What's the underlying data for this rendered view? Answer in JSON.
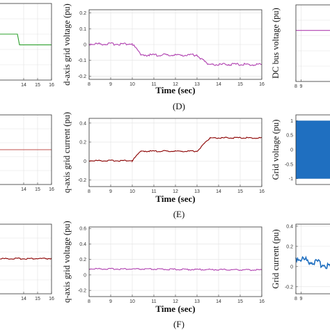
{
  "captions": [
    "(D)",
    "(E)",
    "(F)"
  ],
  "chart_data": [
    {
      "id": "d-left",
      "type": "line",
      "series": [
        {
          "color": "#2ca02c",
          "x": [
            12,
            13.3,
            13.55,
            13.7,
            14,
            15,
            16
          ],
          "y": [
            0.05,
            0.05,
            0.05,
            -0.02,
            -0.02,
            -0.02,
            -0.02
          ]
        }
      ],
      "xlim": [
        12,
        16
      ],
      "ylim": [
        -0.25,
        0.25
      ],
      "xticks": [
        "14",
        "15",
        "16"
      ],
      "yticks": [],
      "xlabel": "",
      "ylabel": "",
      "grid": true
    },
    {
      "id": "d-mid",
      "type": "line",
      "series": [
        {
          "color": "#b040b0",
          "x": [
            8,
            10,
            10.4,
            13,
            13.5,
            16
          ],
          "y": [
            0,
            0,
            -0.07,
            -0.07,
            -0.13,
            -0.13
          ]
        }
      ],
      "xlim": [
        8,
        16
      ],
      "ylim": [
        -0.22,
        0.22
      ],
      "xticks": [
        "8",
        "9",
        "10",
        "11",
        "12",
        "13",
        "14",
        "15",
        "16"
      ],
      "yticks": [
        "0.2",
        "0.1",
        "0",
        "-0.1",
        "-0.2"
      ],
      "xlabel": "Time (sec)",
      "ylabel": "d-axis grid voltage (pu)",
      "grid": true
    },
    {
      "id": "d-right",
      "type": "line",
      "series": [
        {
          "color": "#b040b0",
          "x": [
            8,
            16
          ],
          "y": [
            1,
            1
          ]
        }
      ],
      "xlim": [
        8,
        16
      ],
      "ylim": [
        0,
        1.5
      ],
      "xticks": [
        "8",
        "9"
      ],
      "yticks": [],
      "xlabel": "",
      "ylabel": "DC bus voltage (pu)",
      "grid": true
    },
    {
      "id": "e-left",
      "type": "line",
      "series": [
        {
          "color": "#c0504d",
          "x": [
            12,
            16
          ],
          "y": [
            0,
            0
          ]
        }
      ],
      "xlim": [
        12,
        16
      ],
      "ylim": [
        -1,
        1
      ],
      "xticks": [
        "14",
        "15",
        "16"
      ],
      "yticks": [],
      "xlabel": "",
      "ylabel": "",
      "grid": true
    },
    {
      "id": "e-mid",
      "type": "line",
      "series": [
        {
          "color": "#8b0000",
          "x": [
            8,
            10,
            10.4,
            13,
            13.6,
            16
          ],
          "y": [
            0,
            0,
            0.1,
            0.1,
            0.24,
            0.24
          ]
        }
      ],
      "xlim": [
        8,
        16
      ],
      "ylim": [
        -0.27,
        0.45
      ],
      "xticks": [
        "8",
        "9",
        "10",
        "11",
        "12",
        "13",
        "14",
        "15",
        "16"
      ],
      "yticks": [
        "0.4",
        "0.2",
        "0",
        "-0.2"
      ],
      "xlabel": "Time (sec)",
      "ylabel": "q-axis grid current (pu)",
      "grid": true
    },
    {
      "id": "e-right",
      "type": "line",
      "series": [
        {
          "color": "#1f6fc0",
          "x": [
            8,
            16
          ],
          "y": [
            1,
            -1
          ]
        }
      ],
      "xlim": [
        8,
        16
      ],
      "ylim": [
        -1.2,
        1.2
      ],
      "xticks": [],
      "yticks": [
        "1",
        "0.5",
        "0",
        "-0.5",
        "-1"
      ],
      "xlabel": "",
      "ylabel": "Grid voltage (pu)",
      "grid": true
    },
    {
      "id": "f-left",
      "type": "line",
      "series": [
        {
          "color": "#8b0000",
          "x": [
            12,
            16
          ],
          "y": [
            0,
            0
          ]
        }
      ],
      "xlim": [
        12,
        16
      ],
      "ylim": [
        -1,
        1
      ],
      "xticks": [
        "14",
        "15",
        "16"
      ],
      "yticks": [],
      "xlabel": "",
      "ylabel": "",
      "grid": true
    },
    {
      "id": "f-mid",
      "type": "line",
      "series": [
        {
          "color": "#b040b0",
          "x": [
            8,
            16
          ],
          "y": [
            0.075,
            0.06
          ]
        }
      ],
      "xlim": [
        8,
        16
      ],
      "ylim": [
        -0.28,
        0.62
      ],
      "xticks": [
        "8",
        "9",
        "10",
        "11",
        "12",
        "13",
        "14",
        "15",
        "16"
      ],
      "yticks": [
        "0.6",
        "0.4",
        "0.2",
        "0",
        "-0.2"
      ],
      "xlabel": "Time (sec)",
      "ylabel": "q-axis grid voltage (pu)",
      "grid": true
    },
    {
      "id": "f-right",
      "type": "line",
      "series": [
        {
          "color": "#1f6fc0",
          "x": [
            8,
            16
          ],
          "y": [
            0.07,
            -0.03
          ]
        }
      ],
      "xlim": [
        8,
        16
      ],
      "ylim": [
        -0.27,
        0.42
      ],
      "xticks": [
        "8",
        "9"
      ],
      "yticks": [
        "0.4",
        "0.2",
        "0",
        "-0.2"
      ],
      "xlabel": "",
      "ylabel": "Grid current (pu)",
      "grid": true
    }
  ]
}
